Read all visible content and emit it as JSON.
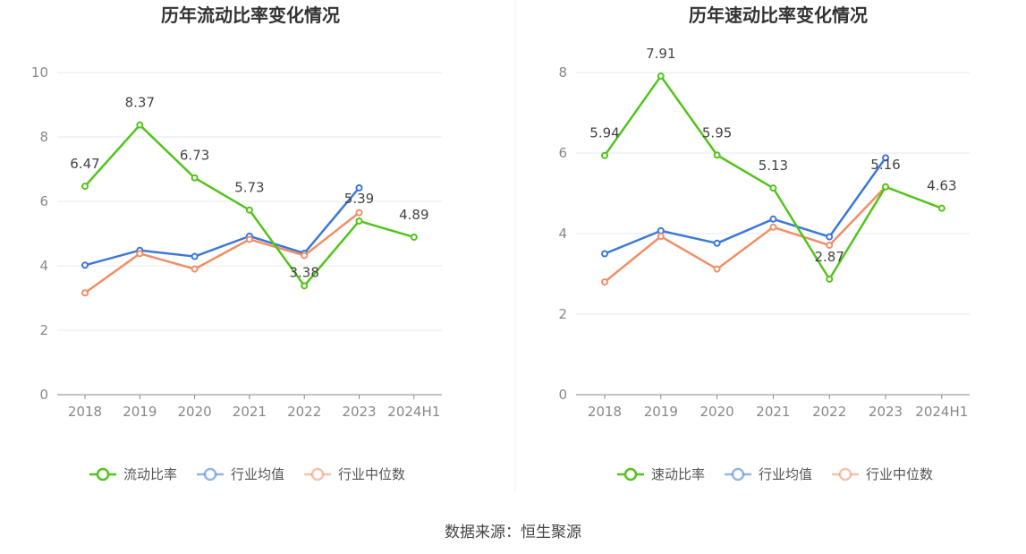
{
  "source_label": "数据来源：恒生聚源",
  "colors": {
    "main": "#52c41a",
    "avg": "#3c78d8",
    "median": "#f28e65",
    "grid": "#e6e9f2",
    "axis": "#888888"
  },
  "chart_data": [
    {
      "type": "line",
      "title": "历年流动比率变化情况",
      "categories": [
        "2018",
        "2019",
        "2020",
        "2021",
        "2022",
        "2023",
        "2024H1"
      ],
      "ylim": [
        0,
        10
      ],
      "yticks": [
        0,
        2,
        4,
        6,
        8,
        10
      ],
      "grid": true,
      "legend_position": "bottom-center",
      "series": [
        {
          "name": "流动比率",
          "role": "main",
          "values": [
            6.47,
            8.37,
            6.73,
            5.73,
            3.38,
            5.39,
            4.89
          ],
          "labels": [
            "6.47",
            "8.37",
            "6.73",
            "5.73",
            "3.38",
            "5.39",
            "4.89"
          ]
        },
        {
          "name": "行业均值",
          "role": "avg",
          "values": [
            4.02,
            4.48,
            4.29,
            4.92,
            4.39,
            6.42,
            null
          ]
        },
        {
          "name": "行业中位数",
          "role": "median",
          "values": [
            3.16,
            4.38,
            3.9,
            4.82,
            4.32,
            5.65,
            null
          ]
        }
      ]
    },
    {
      "type": "line",
      "title": "历年速动比率变化情况",
      "categories": [
        "2018",
        "2019",
        "2020",
        "2021",
        "2022",
        "2023",
        "2024H1"
      ],
      "ylim": [
        0,
        8
      ],
      "yticks": [
        0,
        2,
        4,
        6,
        8
      ],
      "grid": true,
      "legend_position": "bottom-center",
      "series": [
        {
          "name": "速动比率",
          "role": "main",
          "values": [
            5.94,
            7.91,
            5.95,
            5.13,
            2.87,
            5.16,
            4.63
          ],
          "labels": [
            "5.94",
            "7.91",
            "5.95",
            "5.13",
            "2.87",
            "5.16",
            "4.63"
          ]
        },
        {
          "name": "行业均值",
          "role": "avg",
          "values": [
            3.5,
            4.07,
            3.76,
            4.36,
            3.92,
            5.88,
            null
          ]
        },
        {
          "name": "行业中位数",
          "role": "median",
          "values": [
            2.8,
            3.93,
            3.12,
            4.16,
            3.71,
            5.16,
            null
          ]
        }
      ]
    }
  ]
}
